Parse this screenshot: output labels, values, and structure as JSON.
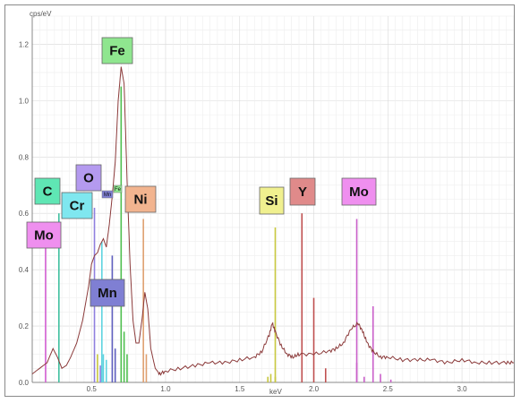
{
  "chart_data": {
    "type": "line",
    "title": "",
    "ylabel": "cps/eV",
    "xlabel": "keV",
    "xlim": [
      0.1,
      3.35
    ],
    "ylim": [
      0.0,
      1.3
    ],
    "grid": true,
    "x_ticks": [
      "0.5",
      "1.0",
      "1.5",
      "2.0",
      "2.5",
      "3.0"
    ],
    "y_ticks": [
      "0.0",
      "0.2",
      "0.4",
      "0.6",
      "0.8",
      "1.0",
      "1.2"
    ],
    "series": [
      {
        "color": "#8b3a3a",
        "x": [
          0.1,
          0.15,
          0.2,
          0.24,
          0.27,
          0.3,
          0.33,
          0.36,
          0.4,
          0.44,
          0.48,
          0.5,
          0.52,
          0.54,
          0.56,
          0.58,
          0.6,
          0.62,
          0.64,
          0.66,
          0.68,
          0.7,
          0.72,
          0.74,
          0.76,
          0.78,
          0.8,
          0.82,
          0.84,
          0.86,
          0.88,
          0.9,
          0.93,
          0.96,
          1.0,
          1.1,
          1.2,
          1.3,
          1.4,
          1.5,
          1.6,
          1.65,
          1.7,
          1.72,
          1.74,
          1.78,
          1.82,
          1.86,
          1.9,
          2.0,
          2.1,
          2.15,
          2.2,
          2.25,
          2.3,
          2.33,
          2.36,
          2.4,
          2.45,
          2.5,
          2.6,
          2.7,
          2.8,
          2.9,
          3.0,
          3.1,
          3.2,
          3.3,
          3.35
        ],
        "y": [
          0.03,
          0.05,
          0.07,
          0.12,
          0.09,
          0.05,
          0.06,
          0.09,
          0.14,
          0.22,
          0.34,
          0.42,
          0.45,
          0.46,
          0.49,
          0.51,
          0.48,
          0.56,
          0.66,
          0.78,
          1.0,
          1.12,
          1.06,
          0.72,
          0.42,
          0.22,
          0.14,
          0.14,
          0.22,
          0.32,
          0.26,
          0.12,
          0.05,
          0.03,
          0.04,
          0.05,
          0.06,
          0.07,
          0.07,
          0.08,
          0.09,
          0.11,
          0.17,
          0.21,
          0.18,
          0.13,
          0.1,
          0.09,
          0.1,
          0.1,
          0.11,
          0.12,
          0.14,
          0.19,
          0.21,
          0.18,
          0.14,
          0.11,
          0.09,
          0.09,
          0.08,
          0.08,
          0.08,
          0.07,
          0.08,
          0.07,
          0.07,
          0.07,
          0.07
        ]
      }
    ],
    "element_lines": [
      {
        "name": "Mo",
        "x": 0.19,
        "height": 0.55,
        "color": "#d35fd3"
      },
      {
        "name": "C",
        "x": 0.28,
        "height": 0.6,
        "color": "#3fbf9f"
      },
      {
        "name": "O",
        "x": 0.52,
        "height": 0.62,
        "color": "#8f7fdf"
      },
      {
        "name": "Cr",
        "x": 0.57,
        "height": 0.5,
        "color": "#5fd3df"
      },
      {
        "name": "Mn",
        "x": 0.64,
        "height": 0.45,
        "color": "#5f5fbf"
      },
      {
        "name": "Fe",
        "x": 0.7,
        "height": 1.05,
        "color": "#4fbf4f"
      },
      {
        "name": "Ni",
        "x": 0.85,
        "height": 0.58,
        "color": "#df9f6f"
      },
      {
        "name": "Si",
        "x": 1.74,
        "height": 0.55,
        "color": "#c8c83f"
      },
      {
        "name": "Y",
        "x": 1.92,
        "height": 0.6,
        "color": "#bf4f4f"
      },
      {
        "name": "Mo",
        "x": 2.29,
        "height": 0.58,
        "color": "#c95fc9"
      }
    ],
    "minor_lines": [
      {
        "x": 0.54,
        "height": 0.1,
        "color": "#c8c83f"
      },
      {
        "x": 0.56,
        "height": 0.06,
        "color": "#8f7fdf"
      },
      {
        "x": 0.58,
        "height": 0.1,
        "color": "#5fd3df"
      },
      {
        "x": 0.6,
        "height": 0.08,
        "color": "#5fd3df"
      },
      {
        "x": 0.66,
        "height": 0.12,
        "color": "#5f5fbf"
      },
      {
        "x": 0.72,
        "height": 0.18,
        "color": "#4fbf4f"
      },
      {
        "x": 0.74,
        "height": 0.1,
        "color": "#4fbf4f"
      },
      {
        "x": 0.87,
        "height": 0.1,
        "color": "#df9f6f"
      },
      {
        "x": 1.69,
        "height": 0.02,
        "color": "#c8c83f"
      },
      {
        "x": 1.71,
        "height": 0.03,
        "color": "#c8c83f"
      },
      {
        "x": 1.74,
        "height": 0.02,
        "color": "#c8c83f"
      },
      {
        "x": 2.0,
        "height": 0.3,
        "color": "#bf4f4f"
      },
      {
        "x": 2.08,
        "height": 0.05,
        "color": "#bf4f4f"
      },
      {
        "x": 2.29,
        "height": 0.07,
        "color": "#c95fc9"
      },
      {
        "x": 2.34,
        "height": 0.02,
        "color": "#c95fc9"
      },
      {
        "x": 2.4,
        "height": 0.27,
        "color": "#c95fc9"
      },
      {
        "x": 2.45,
        "height": 0.03,
        "color": "#c95fc9"
      },
      {
        "x": 2.52,
        "height": 0.01,
        "color": "#c95fc9"
      }
    ],
    "labels": [
      {
        "text": "Fe",
        "fill": "#8fe68f"
      },
      {
        "text": "C",
        "fill": "#5fe6b4"
      },
      {
        "text": "O",
        "fill": "#b49aef"
      },
      {
        "text": "Cr",
        "fill": "#7fe7ef"
      },
      {
        "text": "Mo",
        "fill": "#ef8fef"
      },
      {
        "text": "Ni",
        "fill": "#f2b48f"
      },
      {
        "text": "Mn",
        "fill": "#7f7fd3"
      },
      {
        "text": "Si",
        "fill": "#f0f08f"
      },
      {
        "text": "Y",
        "fill": "#e08a8a"
      },
      {
        "text": "Mo",
        "fill": "#ef8fef"
      }
    ],
    "small_labels": [
      {
        "text": "Mn",
        "fill": "#7f7fd3"
      },
      {
        "text": "Fe",
        "fill": "#8fe68f"
      }
    ]
  }
}
